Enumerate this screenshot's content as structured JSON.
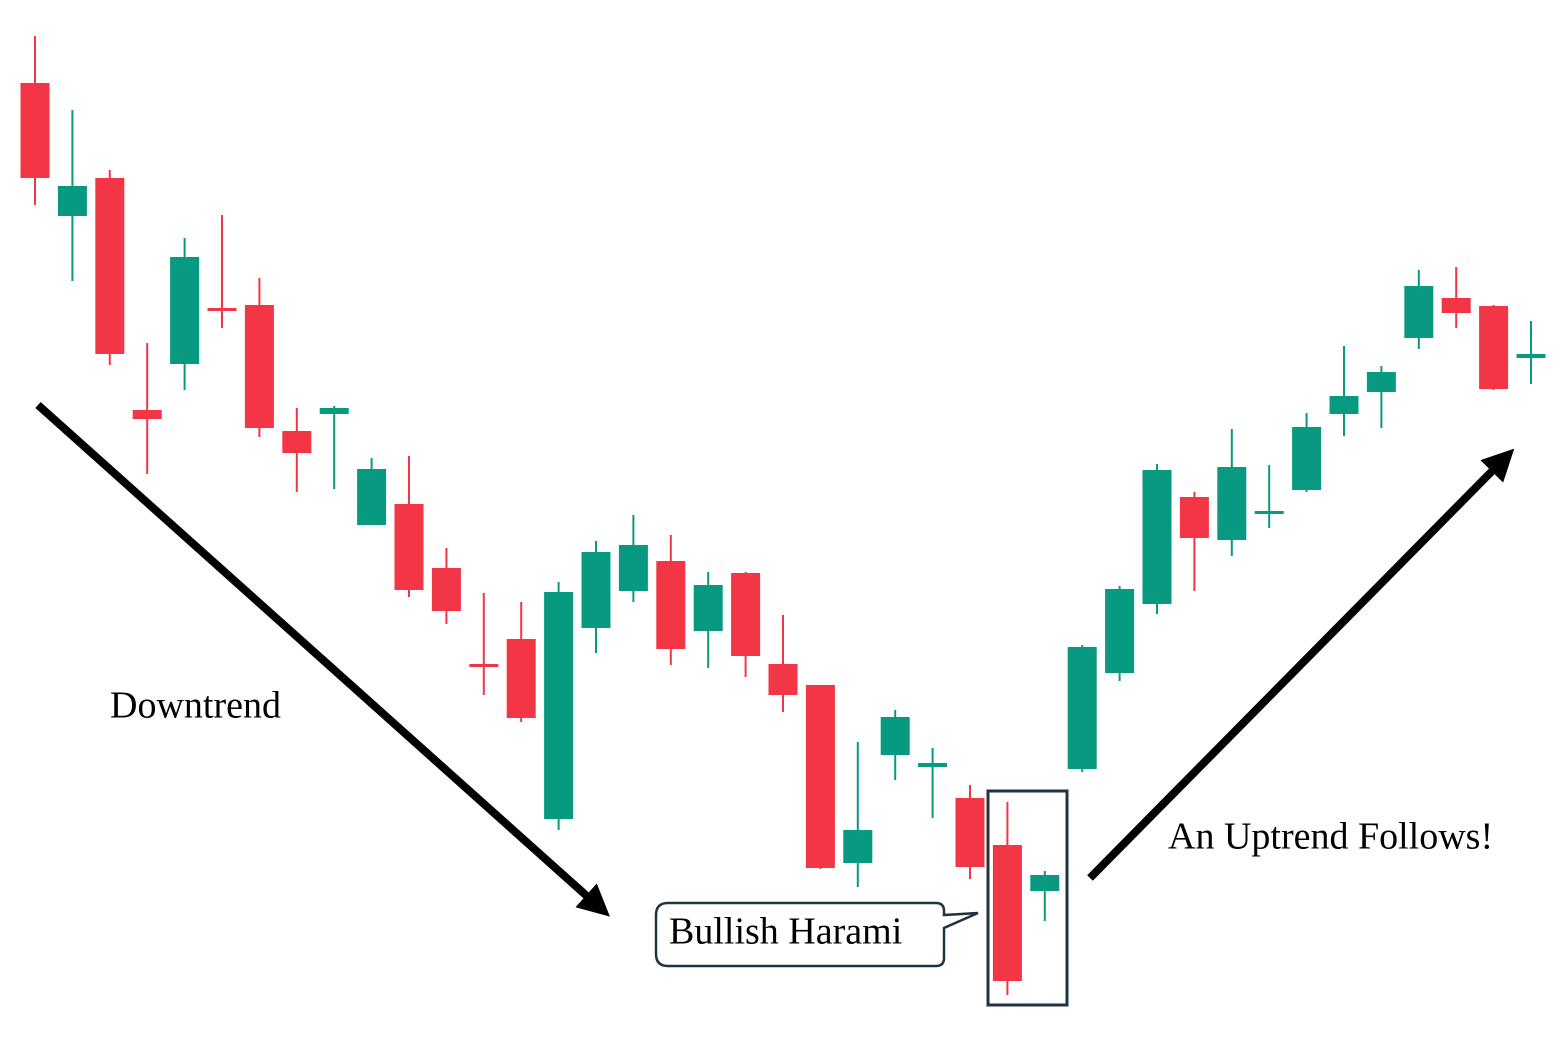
{
  "chart_data": {
    "type": "candlestick",
    "annotations": [
      "Downtrend",
      "Bullish Harami",
      "An Uptrend Follows!"
    ],
    "up_color": "#089981",
    "down_color": "#f23645",
    "ylim": [
      0,
      1042
    ],
    "open": [
      959,
      826,
      864,
      632,
      678,
      734,
      737,
      611,
      628,
      517,
      538,
      474,
      378,
      403,
      223,
      414,
      451,
      481,
      411,
      469,
      378,
      357,
      179,
      287,
      275,
      244,
      197,
      151,
      273,
      369,
      438,
      545,
      502,
      528,
      552,
      628,
      650,
      704,
      744,
      736,
      684
    ],
    "high": [
      1006,
      932,
      872,
      699,
      804,
      827,
      764,
      634,
      636,
      584,
      586,
      494,
      449,
      440,
      460,
      501,
      527,
      507,
      470,
      470,
      427,
      357,
      300,
      332,
      294,
      257,
      240,
      171,
      397,
      456,
      578,
      550,
      613,
      577,
      629,
      696,
      676,
      772,
      775,
      737,
      721
    ],
    "low": [
      837,
      761,
      677,
      568,
      652,
      714,
      605,
      550,
      553,
      517,
      445,
      418,
      347,
      320,
      212,
      389,
      440,
      377,
      374,
      365,
      330,
      173,
      155,
      262,
      224,
      163,
      47,
      121,
      270,
      361,
      428,
      451,
      486,
      514,
      550,
      606,
      614,
      693,
      714,
      652,
      658
    ],
    "close": [
      864,
      856,
      688,
      623,
      785,
      731,
      614,
      589,
      634,
      573,
      452,
      431,
      375,
      324,
      450,
      490,
      497,
      393,
      457,
      386,
      347,
      174,
      212,
      325,
      279,
      175,
      61,
      167,
      395,
      453,
      572,
      504,
      575,
      531,
      615,
      646,
      670,
      756,
      729,
      653,
      688
    ]
  }
}
